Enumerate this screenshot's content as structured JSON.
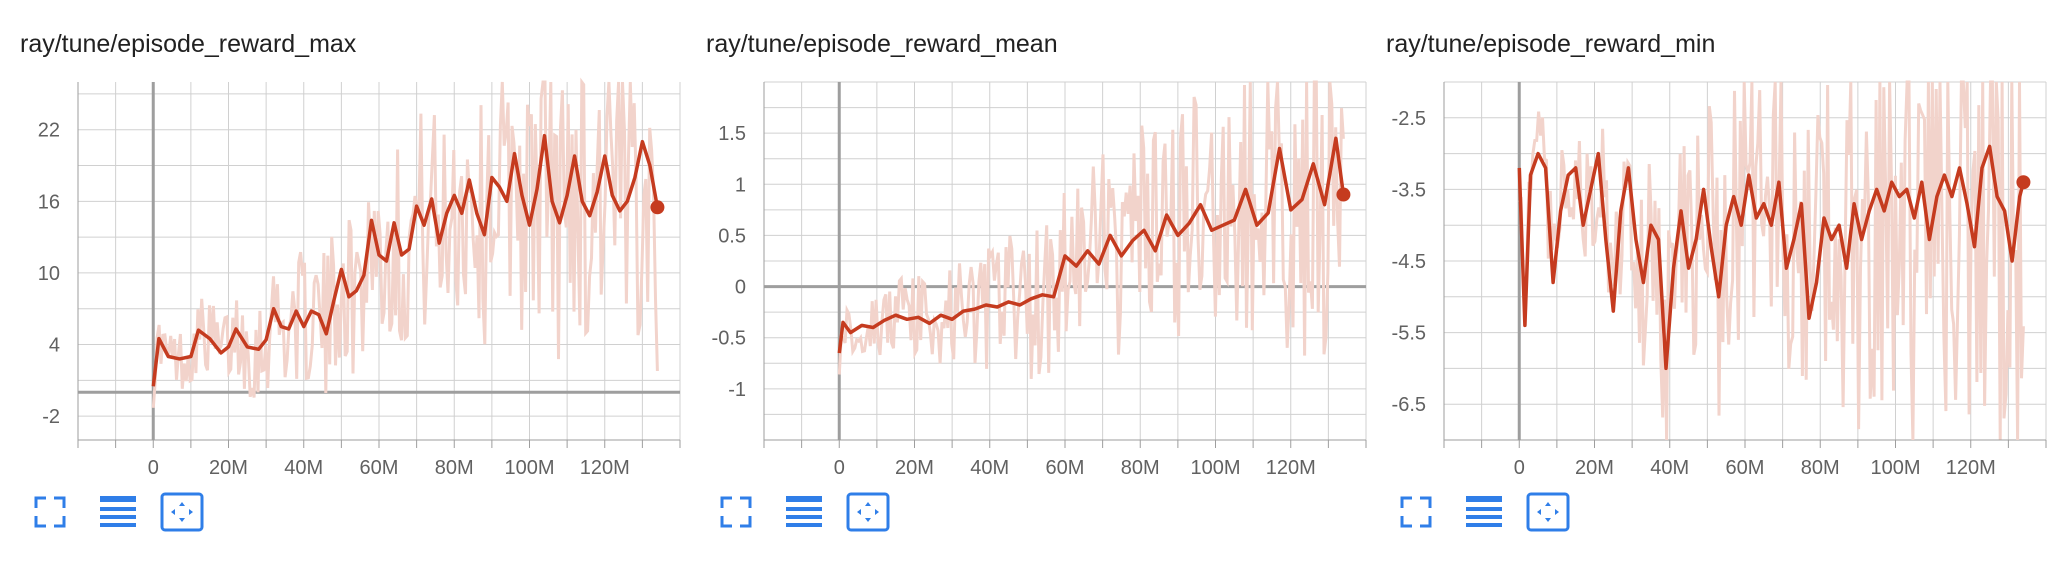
{
  "colors": {
    "line": "#c53b1f",
    "raw": "#f2d3cb",
    "grid": "#d0d0d0",
    "axis": "#9e9e9e",
    "icon": "#2f7ee8"
  },
  "toolbar_icons": [
    "fullscreen-icon",
    "toggle-log-scale-icon",
    "fit-domain-icon"
  ],
  "chart_data": [
    {
      "type": "line",
      "title": "ray/tune/episode_reward_max",
      "xlim": [
        -20000000,
        140000000
      ],
      "ylim": [
        -4,
        26
      ],
      "xticks": [
        0,
        20000000,
        40000000,
        60000000,
        80000000,
        100000000,
        120000000
      ],
      "xtick_labels": [
        "0",
        "20M",
        "40M",
        "60M",
        "80M",
        "100M",
        "120M"
      ],
      "yticks": [
        -2,
        4,
        10,
        16,
        22
      ],
      "ytick_labels": [
        "-2",
        "4",
        "10",
        "16",
        "22"
      ],
      "grid": true,
      "series": [
        {
          "role": "smoothed",
          "x": [
            0,
            1500000,
            4000000,
            7000000,
            10000000,
            12000000,
            15000000,
            18000000,
            20000000,
            22000000,
            25000000,
            28000000,
            30000000,
            32000000,
            34000000,
            36000000,
            38000000,
            40000000,
            42000000,
            44000000,
            46000000,
            48000000,
            50000000,
            52000000,
            54000000,
            56000000,
            58000000,
            60000000,
            62000000,
            64000000,
            66000000,
            68000000,
            70000000,
            72000000,
            74000000,
            76000000,
            78000000,
            80000000,
            82000000,
            84000000,
            86000000,
            88000000,
            90000000,
            92000000,
            94000000,
            96000000,
            98000000,
            100000000,
            102000000,
            104000000,
            106000000,
            108000000,
            110000000,
            112000000,
            114000000,
            116000000,
            118000000,
            120000000,
            122000000,
            124000000,
            126000000,
            128000000,
            130000000,
            132000000,
            134000000
          ],
          "y": [
            0.5,
            4.5,
            3,
            2.8,
            3,
            5.2,
            4.5,
            3.3,
            3.8,
            5.3,
            3.8,
            3.6,
            4.4,
            7,
            5.5,
            5.3,
            6.8,
            5.5,
            6.8,
            6.5,
            4.9,
            7.7,
            10.3,
            8,
            8.5,
            9.8,
            14.4,
            11.5,
            11,
            14.2,
            11.5,
            12,
            15.6,
            14,
            16.2,
            12.5,
            15,
            16.5,
            15,
            17.8,
            15,
            13.2,
            18,
            17.2,
            16,
            20,
            16.5,
            14,
            17,
            21.5,
            16,
            14.2,
            16.5,
            19.8,
            16,
            14.8,
            16.8,
            19.8,
            16.5,
            15.2,
            16,
            18,
            21,
            19,
            15.5
          ]
        }
      ],
      "last_point": {
        "x": 134000000,
        "y": 15.5
      }
    },
    {
      "type": "line",
      "title": "ray/tune/episode_reward_mean",
      "xlim": [
        -20000000,
        140000000
      ],
      "ylim": [
        -1.5,
        2
      ],
      "xticks": [
        0,
        20000000,
        40000000,
        60000000,
        80000000,
        100000000,
        120000000
      ],
      "xtick_labels": [
        "0",
        "20M",
        "40M",
        "60M",
        "80M",
        "100M",
        "120M"
      ],
      "yticks": [
        -1,
        -0.5,
        0,
        0.5,
        1,
        1.5
      ],
      "ytick_labels": [
        "-1",
        "-0.5",
        "0",
        "0.5",
        "1",
        "1.5"
      ],
      "grid": true,
      "series": [
        {
          "role": "smoothed",
          "x": [
            0,
            1000000,
            3000000,
            6000000,
            9000000,
            12000000,
            15000000,
            18000000,
            21000000,
            24000000,
            27000000,
            30000000,
            33000000,
            36000000,
            39000000,
            42000000,
            45000000,
            48000000,
            51000000,
            54000000,
            57000000,
            60000000,
            63000000,
            66000000,
            69000000,
            72000000,
            75000000,
            78000000,
            81000000,
            84000000,
            87000000,
            90000000,
            93000000,
            96000000,
            99000000,
            102000000,
            105000000,
            108000000,
            111000000,
            114000000,
            117000000,
            120000000,
            123000000,
            126000000,
            129000000,
            132000000,
            134000000
          ],
          "y": [
            -0.65,
            -0.35,
            -0.45,
            -0.38,
            -0.4,
            -0.33,
            -0.28,
            -0.32,
            -0.3,
            -0.36,
            -0.28,
            -0.32,
            -0.24,
            -0.22,
            -0.18,
            -0.2,
            -0.15,
            -0.18,
            -0.12,
            -0.08,
            -0.1,
            0.3,
            0.2,
            0.35,
            0.22,
            0.5,
            0.3,
            0.45,
            0.55,
            0.35,
            0.7,
            0.5,
            0.62,
            0.8,
            0.55,
            0.6,
            0.65,
            0.95,
            0.6,
            0.72,
            1.35,
            0.75,
            0.85,
            1.2,
            0.8,
            1.45,
            0.9
          ]
        }
      ],
      "last_point": {
        "x": 134000000,
        "y": 0.9
      }
    },
    {
      "type": "line",
      "title": "ray/tune/episode_reward_min",
      "xlim": [
        -20000000,
        140000000
      ],
      "ylim": [
        -7,
        -2
      ],
      "xticks": [
        0,
        20000000,
        40000000,
        60000000,
        80000000,
        100000000,
        120000000
      ],
      "xtick_labels": [
        "0",
        "20M",
        "40M",
        "60M",
        "80M",
        "100M",
        "120M"
      ],
      "yticks": [
        -6.5,
        -5.5,
        -4.5,
        -3.5,
        -2.5
      ],
      "ytick_labels": [
        "-6.5",
        "-5.5",
        "-4.5",
        "-3.5",
        "-2.5"
      ],
      "grid": true,
      "series": [
        {
          "role": "smoothed",
          "x": [
            0,
            1500000,
            3000000,
            5000000,
            7000000,
            9000000,
            11000000,
            13000000,
            15000000,
            17000000,
            19000000,
            21000000,
            23000000,
            25000000,
            27000000,
            29000000,
            31000000,
            33000000,
            35000000,
            37000000,
            39000000,
            41000000,
            43000000,
            45000000,
            47000000,
            49000000,
            51000000,
            53000000,
            55000000,
            57000000,
            59000000,
            61000000,
            63000000,
            65000000,
            67000000,
            69000000,
            71000000,
            73000000,
            75000000,
            77000000,
            79000000,
            81000000,
            83000000,
            85000000,
            87000000,
            89000000,
            91000000,
            93000000,
            95000000,
            97000000,
            99000000,
            101000000,
            103000000,
            105000000,
            107000000,
            109000000,
            111000000,
            113000000,
            115000000,
            117000000,
            119000000,
            121000000,
            123000000,
            125000000,
            127000000,
            129000000,
            131000000,
            133000000,
            134000000
          ],
          "y": [
            -3.2,
            -5.4,
            -3.3,
            -3.0,
            -3.2,
            -4.8,
            -3.8,
            -3.3,
            -3.2,
            -4.0,
            -3.5,
            -3.0,
            -4.2,
            -5.2,
            -3.8,
            -3.2,
            -4.2,
            -4.8,
            -4.0,
            -4.2,
            -6.0,
            -4.6,
            -3.8,
            -4.6,
            -4.2,
            -3.5,
            -4.3,
            -5.0,
            -4.0,
            -3.6,
            -4.0,
            -3.3,
            -3.9,
            -3.7,
            -4.0,
            -3.4,
            -4.6,
            -4.2,
            -3.7,
            -5.3,
            -4.8,
            -3.9,
            -4.2,
            -4.0,
            -4.6,
            -3.7,
            -4.2,
            -3.8,
            -3.5,
            -3.8,
            -3.4,
            -3.6,
            -3.5,
            -3.9,
            -3.4,
            -4.2,
            -3.6,
            -3.3,
            -3.6,
            -3.2,
            -3.7,
            -4.3,
            -3.2,
            -2.9,
            -3.6,
            -3.8,
            -4.5,
            -3.6,
            -3.4
          ],
          "y_note": ""
        }
      ],
      "last_point": {
        "x": 134000000,
        "y": -3.4
      }
    }
  ]
}
